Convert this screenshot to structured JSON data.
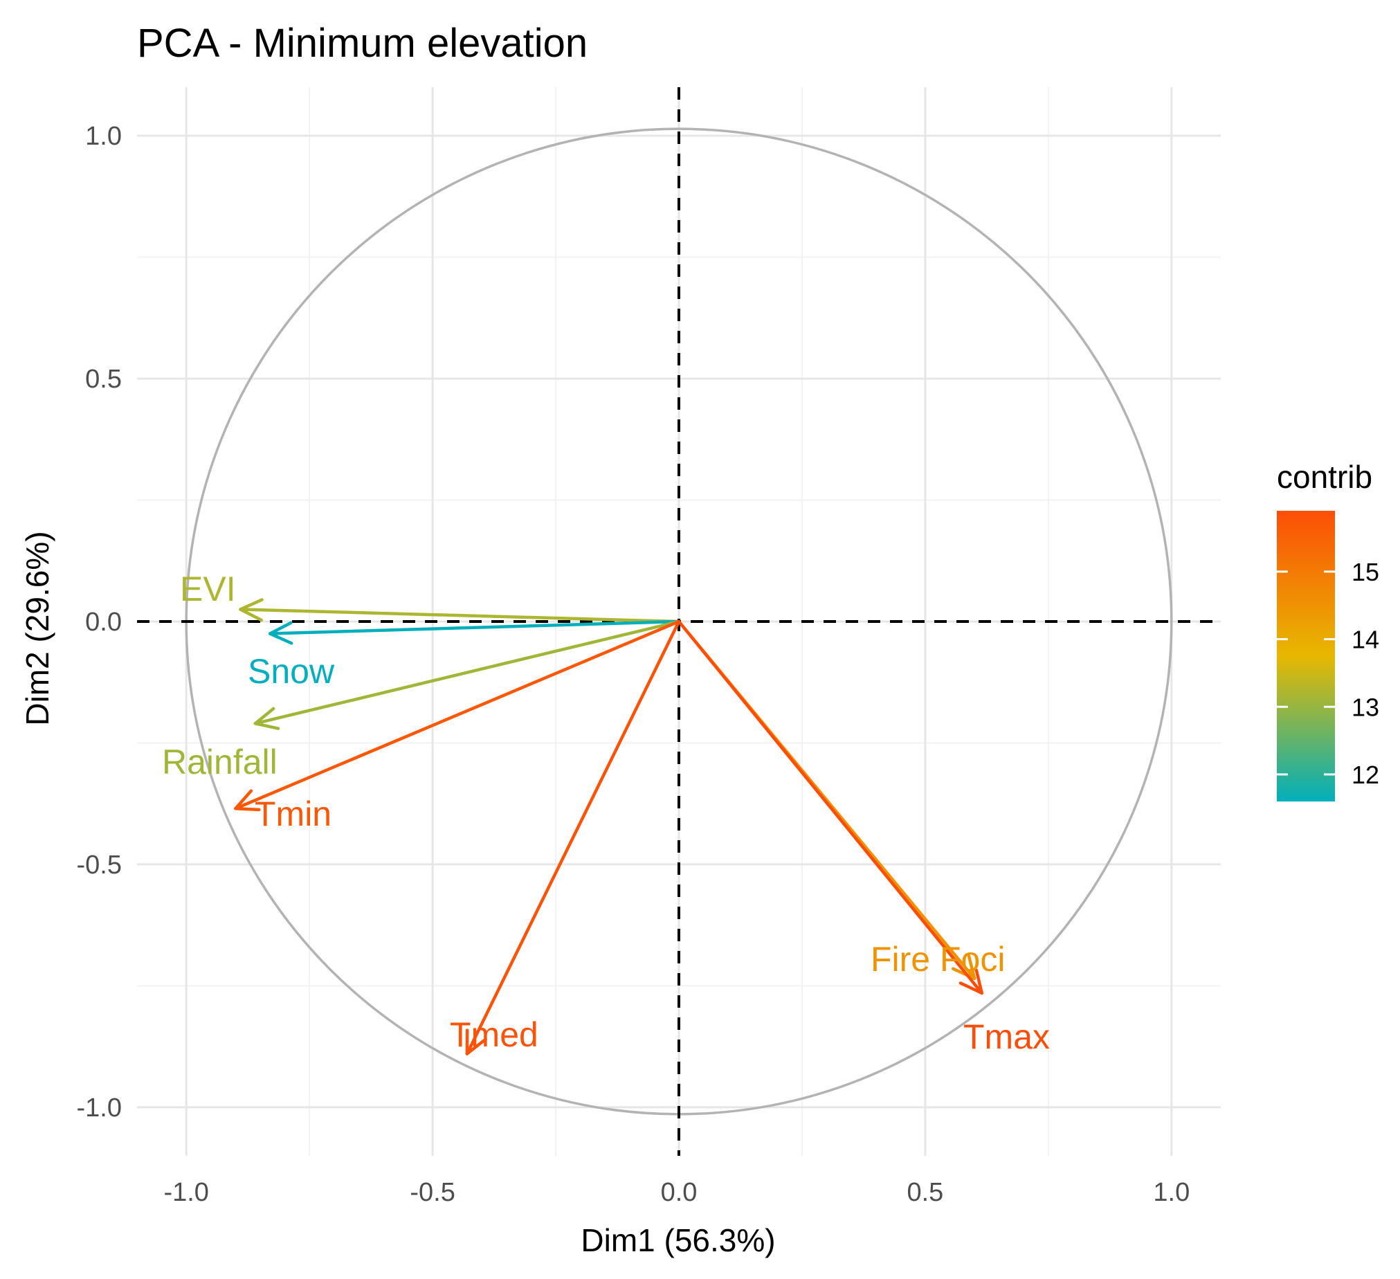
{
  "chart_data": {
    "type": "scatter",
    "subtype": "pca-variable-correlation-circle",
    "title": "PCA - Minimum elevation",
    "xlabel": "Dim1 (56.3%)",
    "ylabel": "Dim2 (29.6%)",
    "xlim": [
      -1.1,
      1.1
    ],
    "ylim": [
      -1.1,
      1.1
    ],
    "x_ticks": [
      -1.0,
      -0.5,
      0.0,
      0.5,
      1.0
    ],
    "x_tick_labels": [
      "-1.0",
      "-0.5",
      "0.0",
      "0.5",
      "1.0"
    ],
    "y_ticks": [
      -1.0,
      -0.5,
      0.0,
      0.5,
      1.0
    ],
    "y_tick_labels": [
      "-1.0",
      "-0.5",
      "0.0",
      "0.5",
      "1.0"
    ],
    "grid": true,
    "unit_circle": true,
    "reference_lines": "dashed at x=0 and y=0",
    "legend": {
      "title": "contrib",
      "placement": "right",
      "type": "gradient",
      "range": [
        11.6,
        15.9
      ],
      "ticks": [
        12,
        13,
        14,
        15
      ],
      "tick_labels": [
        "12",
        "13",
        "14",
        "15"
      ],
      "colors": {
        "low": "#00AFBB",
        "mid": "#E7B800",
        "high": "#FC4E07"
      }
    },
    "variables": [
      {
        "name": "EVI",
        "x": -0.89,
        "y": 0.025,
        "contrib": 13.2
      },
      {
        "name": "Snow",
        "x": -0.83,
        "y": -0.025,
        "contrib": 11.6
      },
      {
        "name": "Rainfall",
        "x": -0.86,
        "y": -0.21,
        "contrib": 13.1
      },
      {
        "name": "Tmin",
        "x": -0.9,
        "y": -0.385,
        "contrib": 15.7
      },
      {
        "name": "Tmed",
        "x": -0.43,
        "y": -0.89,
        "contrib": 15.8
      },
      {
        "name": "Fire Foci",
        "x": 0.6,
        "y": -0.735,
        "contrib": 14.5
      },
      {
        "name": "Tmax",
        "x": 0.615,
        "y": -0.765,
        "contrib": 15.9
      }
    ],
    "colors": {
      "grid": "#ebebeb",
      "circle": "#b3b3b3",
      "reference": "#000000"
    }
  }
}
